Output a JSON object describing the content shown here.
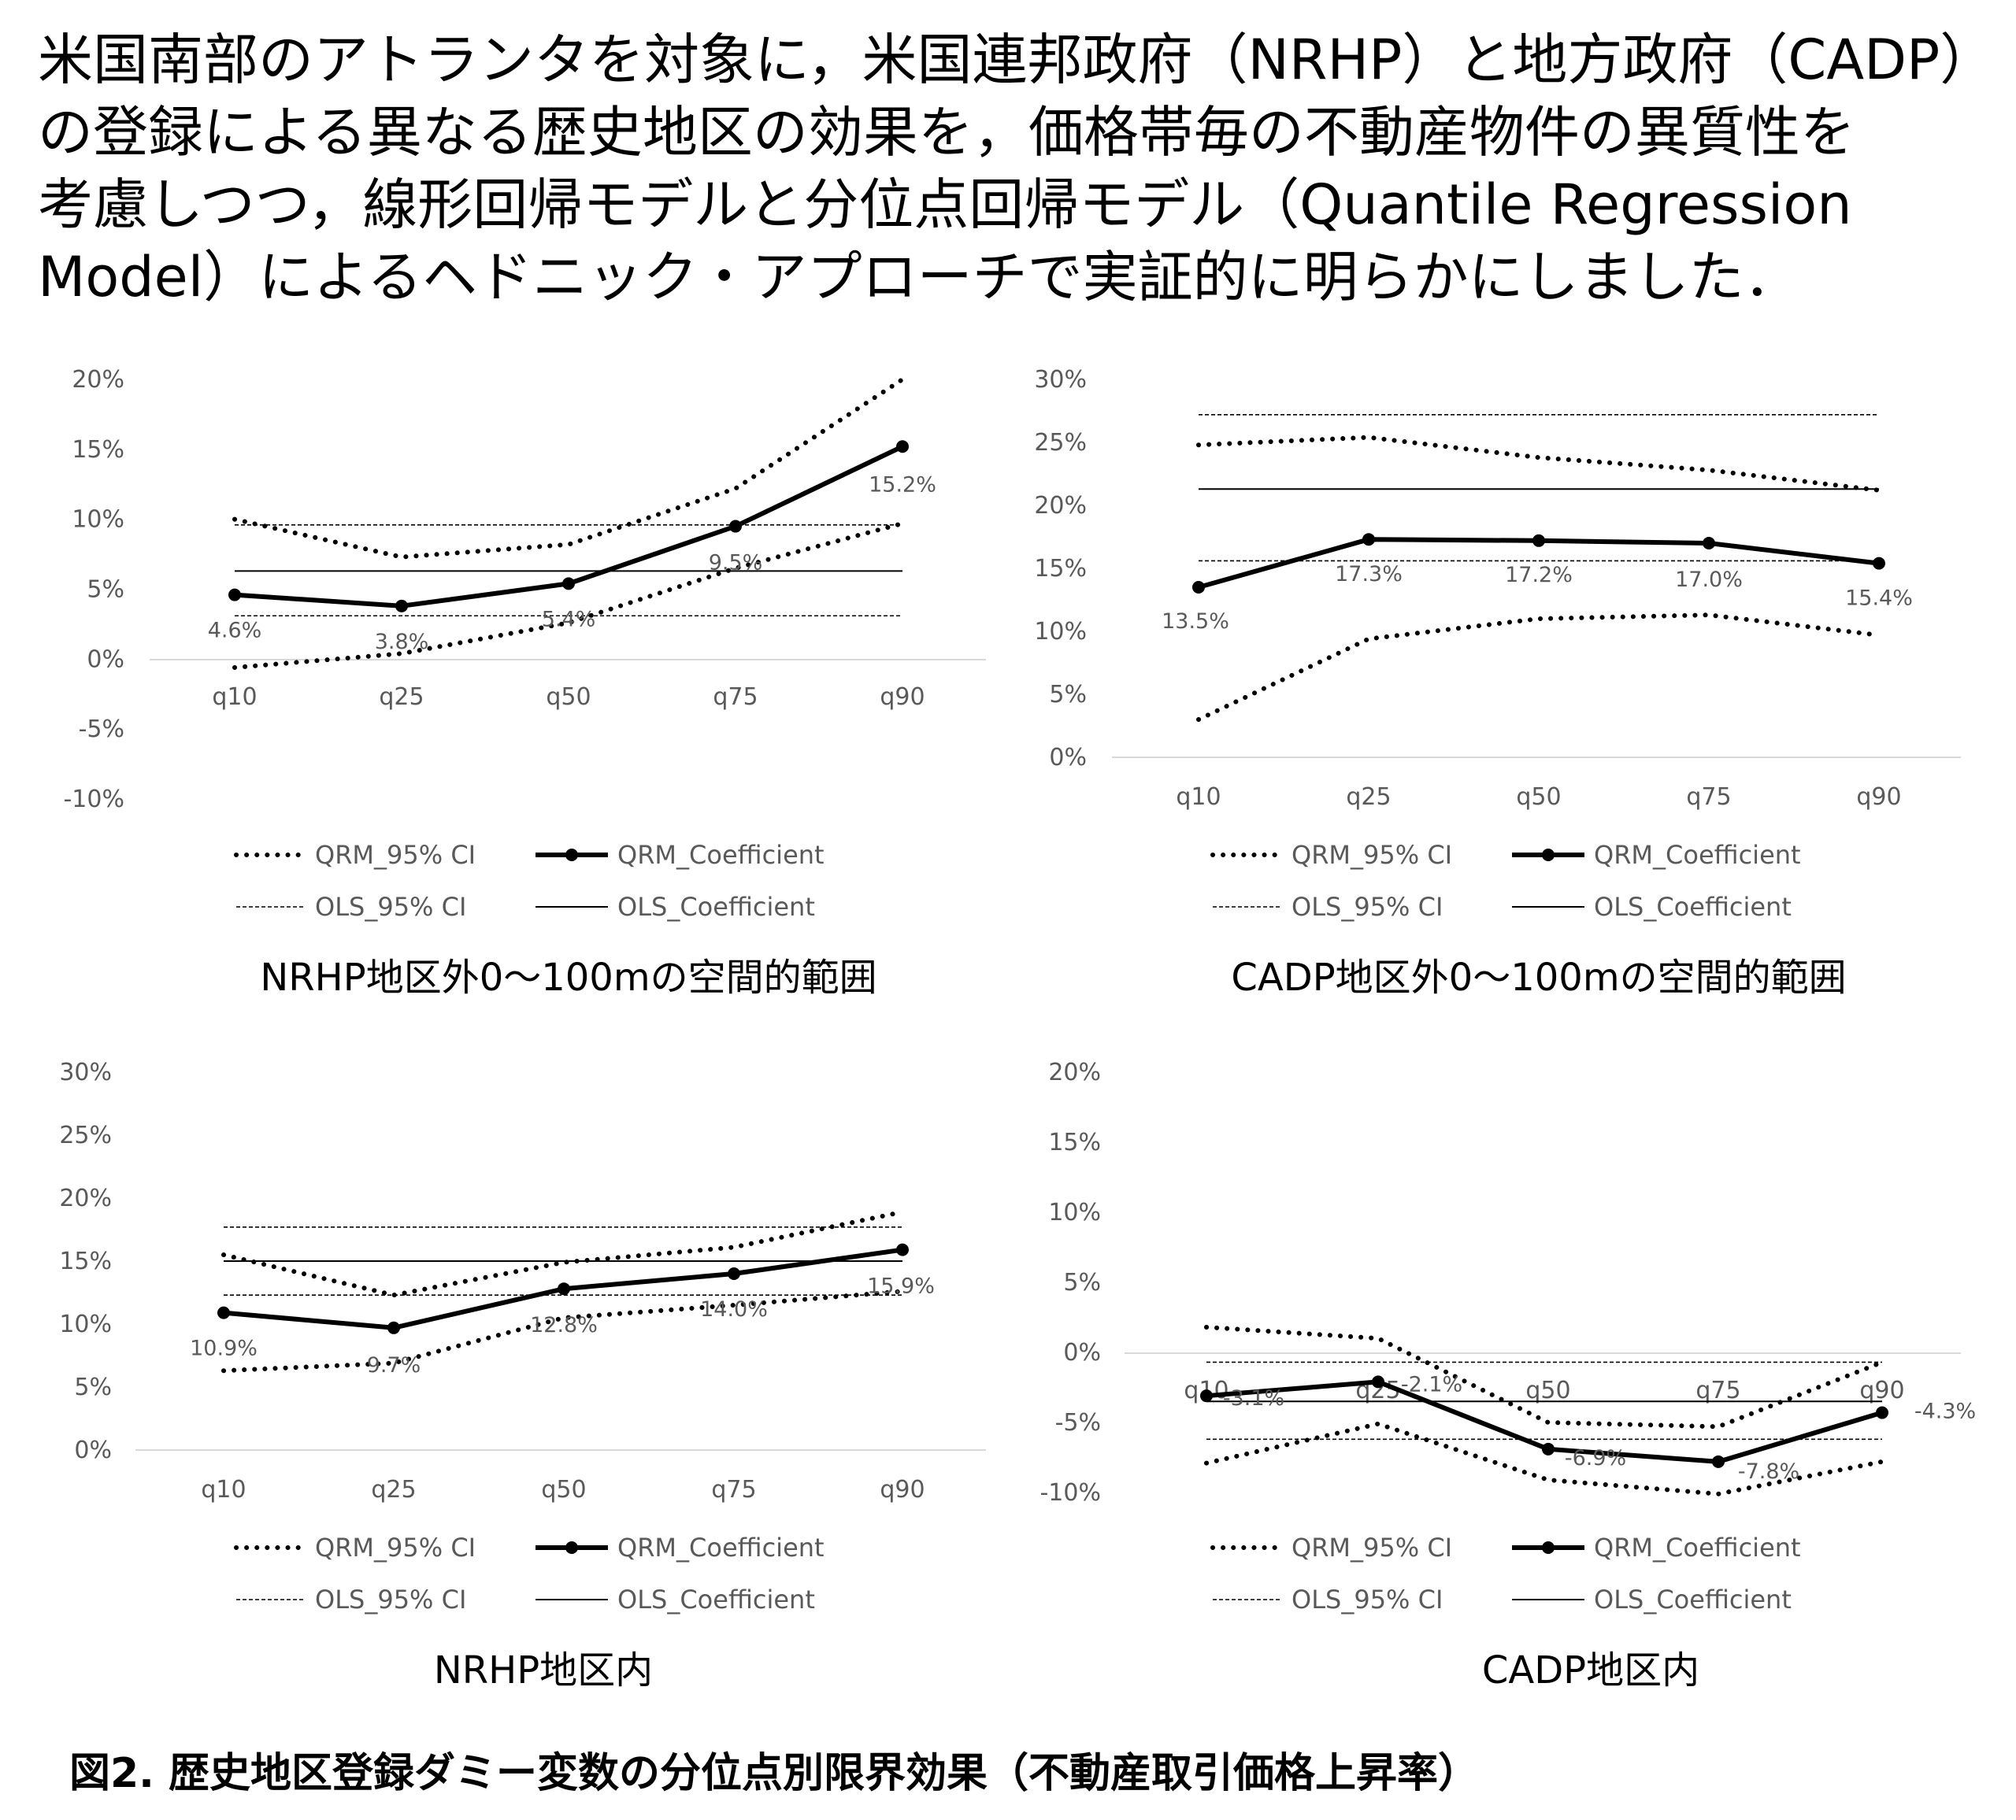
{
  "intro_lines": [
    "米国南部のアトランタを対象に，米国連邦政府（NRHP）と地方政府（CADP）",
    "の登録による異なる歴史地区の効果を，価格帯毎の不動産物件の異質性を",
    "考慮しつつ，線形回帰モデルと分位点回帰モデル（Quantile Regression",
    "Model）によるヘドニック・アプローチで実証的に明らかにしました．"
  ],
  "legend": {
    "qrm_ci": "QRM_95% CI",
    "qrm_coef": "QRM_Coefficient",
    "ols_ci": "OLS_95% CI",
    "ols_coef": "OLS_Coefficient"
  },
  "figure_caption": "図2. 歴史地区登録ダミー変数の分位点別限界効果（不動産取引価格上昇率）",
  "chart_data": [
    {
      "type": "line",
      "title": "NRHP地区外0～100mの空間的範囲",
      "categories": [
        "q10",
        "q25",
        "q50",
        "q75",
        "q90"
      ],
      "yticks": [
        "20%",
        "15%",
        "10%",
        "5%",
        "0%",
        "-5%",
        "-10%"
      ],
      "ylim": [
        -10,
        20
      ],
      "qrm_coefficient": [
        4.6,
        3.8,
        5.4,
        9.5,
        15.2
      ],
      "data_labels": [
        "4.6%",
        "3.8%",
        "5.4%",
        "9.5%",
        "15.2%"
      ],
      "qrm_ci_upper": [
        10.0,
        7.3,
        8.2,
        12.2,
        20.0
      ],
      "qrm_ci_lower": [
        -0.6,
        0.4,
        2.6,
        6.5,
        9.7
      ],
      "ols_coefficient": 6.3,
      "ols_ci": [
        3.1,
        9.6
      ]
    },
    {
      "type": "line",
      "title": "CADP地区外0～100mの空間的範囲",
      "categories": [
        "q10",
        "q25",
        "q50",
        "q75",
        "q90"
      ],
      "yticks": [
        "30%",
        "25%",
        "20%",
        "15%",
        "10%",
        "5%",
        "0%"
      ],
      "ylim": [
        0,
        30
      ],
      "qrm_coefficient": [
        13.5,
        17.3,
        17.2,
        17.0,
        15.4
      ],
      "data_labels": [
        "13.5%",
        "17.3%",
        "17.2%",
        "17.0%",
        "15.4%"
      ],
      "qrm_ci_upper": [
        24.8,
        25.4,
        23.8,
        22.8,
        21.2
      ],
      "qrm_ci_lower": [
        3.0,
        9.4,
        11.0,
        11.3,
        9.7
      ],
      "ols_coefficient": 21.3,
      "ols_ci": [
        15.6,
        27.2
      ]
    },
    {
      "type": "line",
      "title": "NRHP地区内",
      "categories": [
        "q10",
        "q25",
        "q50",
        "q75",
        "q90"
      ],
      "yticks": [
        "30%",
        "25%",
        "20%",
        "15%",
        "10%",
        "5%",
        "0%"
      ],
      "ylim": [
        0,
        30
      ],
      "qrm_coefficient": [
        10.9,
        9.7,
        12.8,
        14.0,
        15.9
      ],
      "data_labels": [
        "10.9%",
        "9.7%",
        "12.8%",
        "14.0%",
        "15.9%"
      ],
      "qrm_ci_upper": [
        15.5,
        12.3,
        14.9,
        16.1,
        18.9
      ],
      "qrm_ci_lower": [
        6.3,
        6.9,
        10.5,
        11.5,
        12.6
      ],
      "ols_coefficient": 15.0,
      "ols_ci": [
        12.3,
        17.7
      ]
    },
    {
      "type": "line",
      "title": "CADP地区内",
      "categories": [
        "q10",
        "q25",
        "q50",
        "q75",
        "q90"
      ],
      "yticks": [
        "20%",
        "15%",
        "10%",
        "5%",
        "0%",
        "-5%",
        "-10%"
      ],
      "ylim": [
        -10,
        20
      ],
      "qrm_coefficient": [
        -3.1,
        -2.1,
        -6.9,
        -7.8,
        -4.3
      ],
      "data_labels": [
        "-3.1%",
        "-2.1%",
        "-6.9%",
        "-7.8%",
        "-4.3%"
      ],
      "qrm_ci_upper": [
        1.8,
        1.0,
        -5.0,
        -5.3,
        -0.7
      ],
      "qrm_ci_lower": [
        -7.9,
        -5.1,
        -9.1,
        -10.1,
        -7.8
      ],
      "ols_coefficient": -3.5,
      "ols_ci": [
        -6.2,
        -0.7
      ]
    }
  ],
  "colors": {
    "line": "#000000",
    "tick_text": "#595959",
    "axis": "#d9d9d9"
  }
}
